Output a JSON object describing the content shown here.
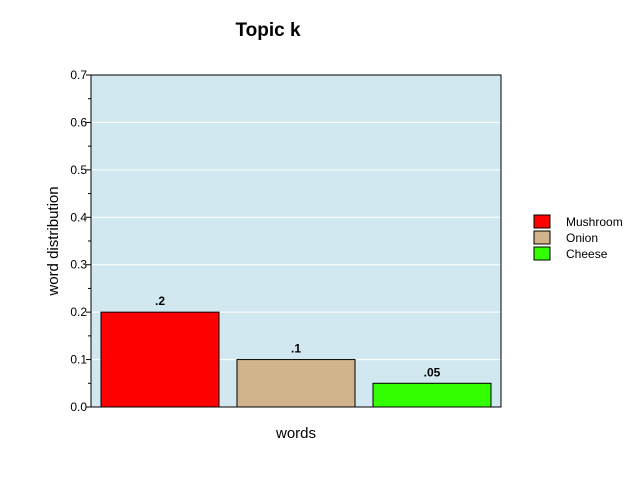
{
  "chart_data": {
    "type": "bar",
    "title": "Topic k",
    "xlabel": "words",
    "ylabel": "word distribution",
    "ylim": [
      0,
      0.7
    ],
    "yticks": [
      "0.0",
      "0.1",
      "0.2",
      "0.3",
      "0.4",
      "0.5",
      "0.6",
      "0.7"
    ],
    "grid": true,
    "legend_position": "right",
    "plot_background": "#d2e8f0",
    "categories": [
      "Mushroom",
      "Onion",
      "Cheese"
    ],
    "values": [
      0.2,
      0.1,
      0.05
    ],
    "data_labels": [
      ".2",
      ".1",
      ".05"
    ],
    "colors": [
      "#ff0000",
      "#d2b48c",
      "#33ff00"
    ]
  }
}
